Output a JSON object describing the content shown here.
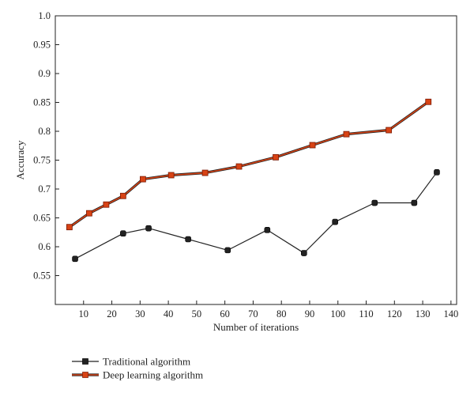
{
  "chart_data": {
    "type": "line",
    "title": "",
    "xlabel": "Number of iterations",
    "ylabel": "Accuracy",
    "xlim": [
      0,
      142
    ],
    "ylim": [
      0.5,
      1.0
    ],
    "xticks": [
      10,
      20,
      30,
      40,
      50,
      60,
      70,
      80,
      90,
      100,
      110,
      120,
      130,
      140
    ],
    "yticks": [
      0.55,
      0.6,
      0.65,
      0.7,
      0.75,
      0.8,
      0.85,
      0.9,
      0.95,
      1.0
    ],
    "ytick_labels": [
      "0.55",
      "0.6",
      "0.65",
      "0.7",
      "0.75",
      "0.8",
      "0.85",
      "0.9",
      "0.95",
      "1.0"
    ],
    "grid": false,
    "legend_position": "bottom-left",
    "series": [
      {
        "name": "Traditional algorithm",
        "color": "#222222",
        "marker_fill": "#222222",
        "x": [
          7,
          24,
          33,
          47,
          61,
          75,
          88,
          99,
          113,
          127,
          135
        ],
        "y": [
          0.579,
          0.623,
          0.632,
          0.613,
          0.594,
          0.629,
          0.589,
          0.643,
          0.676,
          0.676,
          0.729
        ]
      },
      {
        "name": "Deep learning algorithm",
        "color": "#d84315",
        "marker_fill": "#d84315",
        "x": [
          5,
          12,
          18,
          24,
          31,
          41,
          53,
          65,
          78,
          91,
          103,
          118,
          132
        ],
        "y": [
          0.634,
          0.658,
          0.673,
          0.688,
          0.717,
          0.724,
          0.728,
          0.739,
          0.755,
          0.776,
          0.795,
          0.802,
          0.851
        ]
      }
    ]
  }
}
